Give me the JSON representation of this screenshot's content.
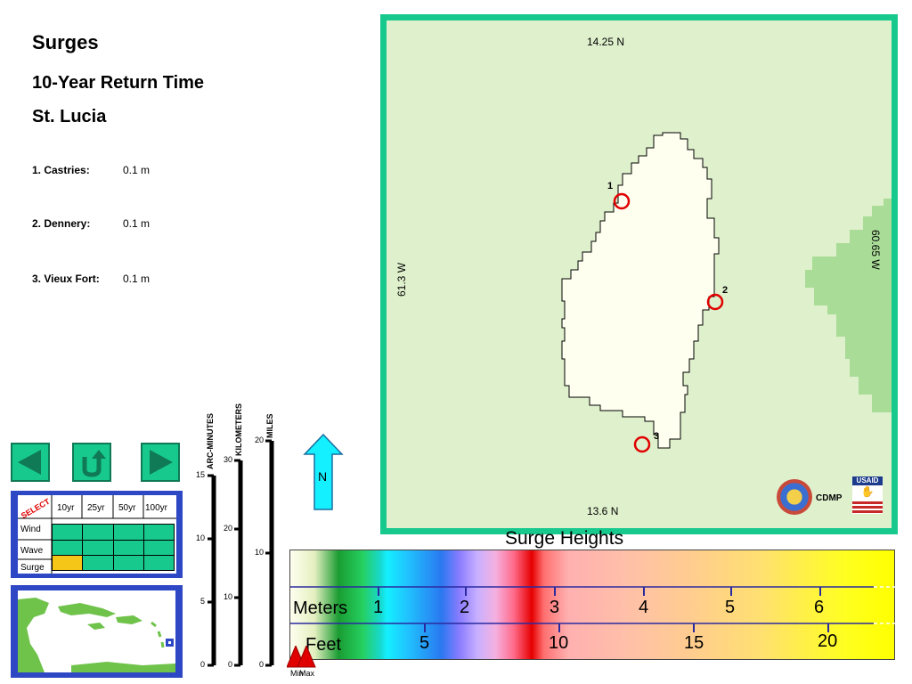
{
  "header": {
    "title": "Surges",
    "subtitle": "10-Year Return Time",
    "location": "St. Lucia"
  },
  "locations": [
    {
      "name": "1. Castries:",
      "value": "0.1 m"
    },
    {
      "name": "2. Dennery:",
      "value": "0.1 m"
    },
    {
      "name": "3. Vieux Fort:",
      "value": "0.1 m"
    }
  ],
  "map": {
    "top_coord": "14.25 N",
    "bottom_coord": "13.6 N",
    "left_coord": "61.3 W",
    "right_coord": "60.65 W",
    "markers": [
      "1",
      "2",
      "3"
    ],
    "logo_text": "CDMP",
    "usaid_text": "USAID",
    "frame_color": "#17c98d",
    "sea_color": "#dff0cd",
    "island_color": "#fffff0",
    "marker_color": "#e00000"
  },
  "navigation": {
    "back_icon": "left-arrow-icon",
    "return_icon": "u-turn-icon",
    "forward_icon": "right-arrow-icon"
  },
  "selector": {
    "select_label": "SELECT",
    "columns": [
      "10yr",
      "25yr",
      "50yr",
      "100yr"
    ],
    "rows": [
      "Wind",
      "Wave",
      "Surge"
    ],
    "selected": {
      "row": "Surge",
      "column": "10yr"
    },
    "selected_color": "#f5c518"
  },
  "scales": {
    "arc_minutes": {
      "label": "ARC-MINUTES",
      "ticks": [
        "15",
        "10",
        "5",
        "0"
      ]
    },
    "kilometers": {
      "label": "KILOMETERS",
      "ticks": [
        "30",
        "20",
        "10",
        "0"
      ]
    },
    "miles": {
      "label": "MILES",
      "ticks": [
        "20",
        "10",
        "0"
      ]
    }
  },
  "north_arrow": {
    "label": "N"
  },
  "legend": {
    "title": "Surge Heights",
    "meters_label": "Meters",
    "meters_ticks": [
      "1",
      "2",
      "3",
      "4",
      "5",
      "6"
    ],
    "feet_label": "Feet",
    "feet_ticks": [
      "5",
      "10",
      "15",
      "20"
    ],
    "min_label": "Min",
    "max_label": "Max"
  }
}
